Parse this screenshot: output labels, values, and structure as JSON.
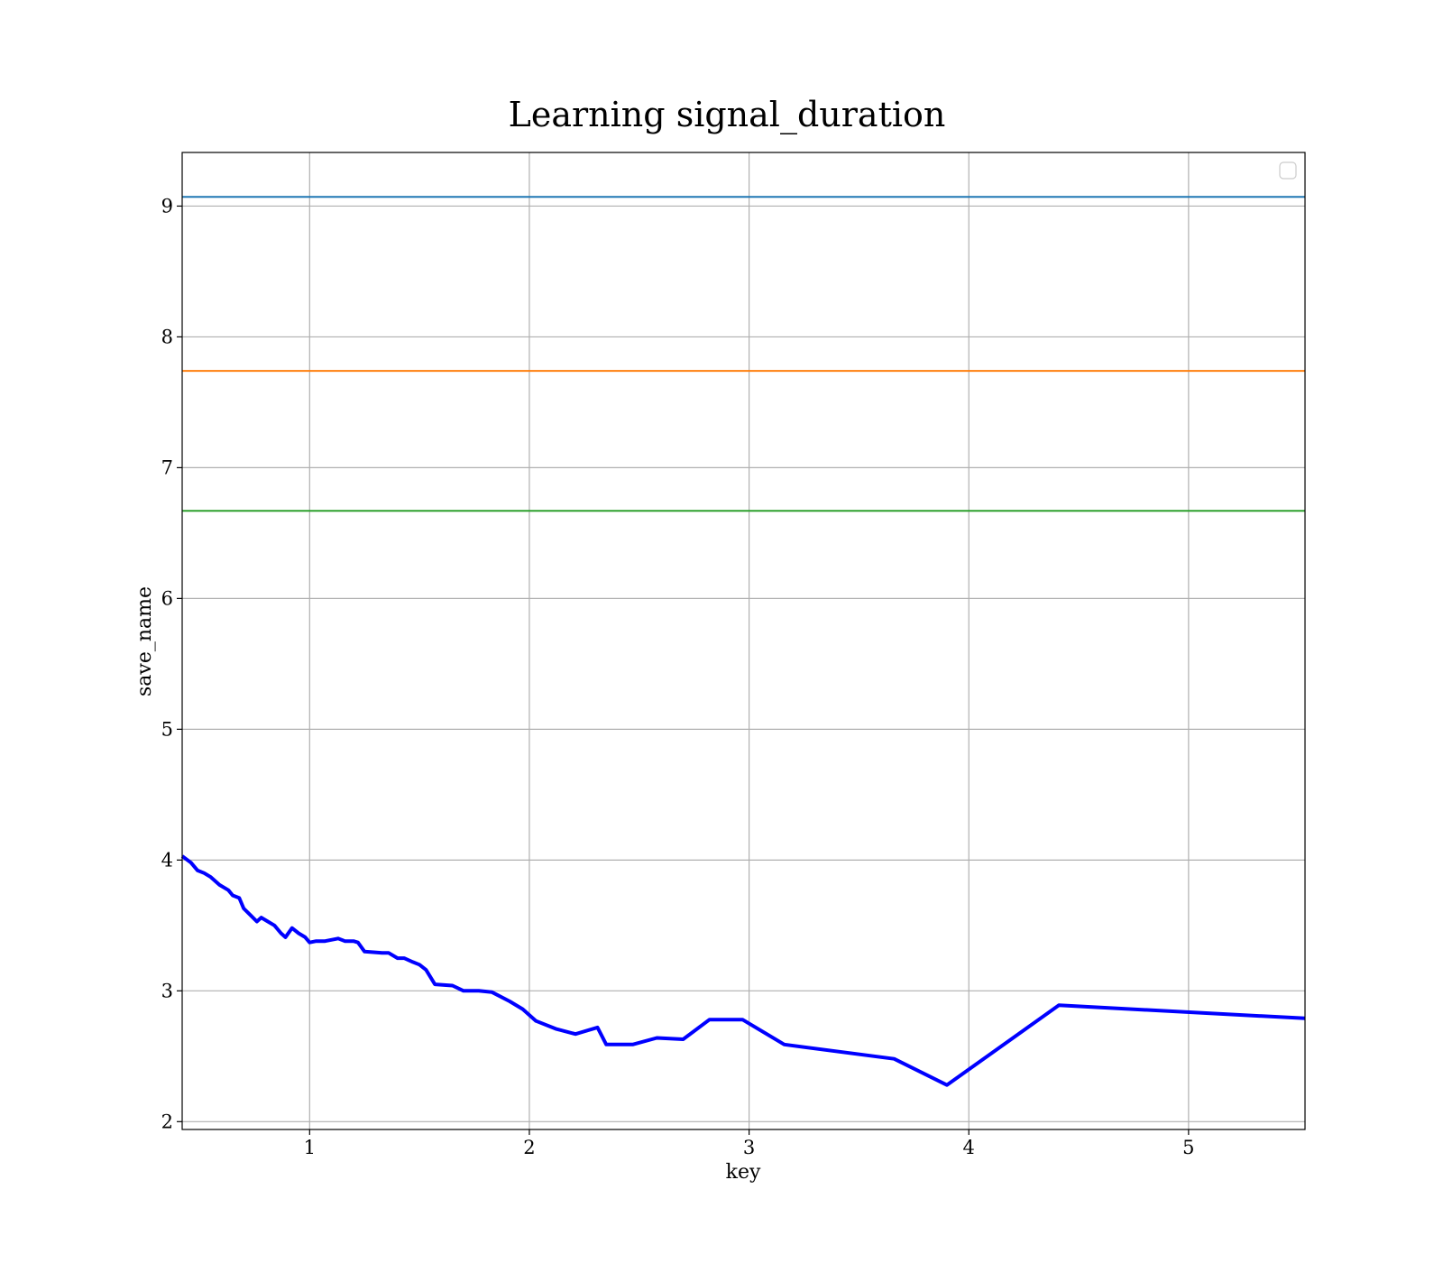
{
  "chart_data": {
    "type": "line",
    "title": "Learning signal_duration",
    "xlabel": "key",
    "ylabel": "save_name",
    "xlim": [
      0.42,
      5.53
    ],
    "ylim": [
      1.94,
      9.41
    ],
    "grid": true,
    "legend": {
      "placement": "top-right",
      "entries": []
    },
    "x_ticks": [
      1,
      2,
      3,
      4,
      5
    ],
    "y_ticks": [
      2,
      3,
      4,
      5,
      6,
      7,
      8,
      9
    ],
    "hlines": [
      {
        "y": 9.07,
        "color": "#1f77b4"
      },
      {
        "y": 7.74,
        "color": "#ff7f0e"
      },
      {
        "y": 6.67,
        "color": "#2ca02c"
      }
    ],
    "series": [
      {
        "color": "#0000ff",
        "x": [
          0.42,
          0.46,
          0.49,
          0.52,
          0.55,
          0.59,
          0.63,
          0.65,
          0.68,
          0.7,
          0.73,
          0.76,
          0.78,
          0.81,
          0.84,
          0.87,
          0.89,
          0.92,
          0.95,
          0.98,
          1.0,
          1.03,
          1.07,
          1.13,
          1.16,
          1.2,
          1.22,
          1.25,
          1.33,
          1.36,
          1.4,
          1.43,
          1.47,
          1.5,
          1.53,
          1.57,
          1.65,
          1.7,
          1.77,
          1.83,
          1.91,
          1.97,
          2.03,
          2.12,
          2.21,
          2.31,
          2.35,
          2.47,
          2.58,
          2.7,
          2.82,
          2.97,
          3.16,
          3.66,
          3.9,
          4.41,
          5.53
        ],
        "y": [
          4.03,
          3.98,
          3.92,
          3.9,
          3.87,
          3.81,
          3.77,
          3.73,
          3.71,
          3.63,
          3.58,
          3.53,
          3.56,
          3.53,
          3.5,
          3.44,
          3.41,
          3.48,
          3.44,
          3.41,
          3.37,
          3.38,
          3.38,
          3.4,
          3.38,
          3.38,
          3.37,
          3.3,
          3.29,
          3.29,
          3.25,
          3.25,
          3.22,
          3.2,
          3.16,
          3.05,
          3.04,
          3.0,
          3.0,
          2.99,
          2.92,
          2.86,
          2.77,
          2.71,
          2.67,
          2.72,
          2.59,
          2.59,
          2.64,
          2.63,
          2.78,
          2.78,
          2.59,
          2.48,
          2.28,
          2.89,
          2.79
        ]
      }
    ]
  }
}
